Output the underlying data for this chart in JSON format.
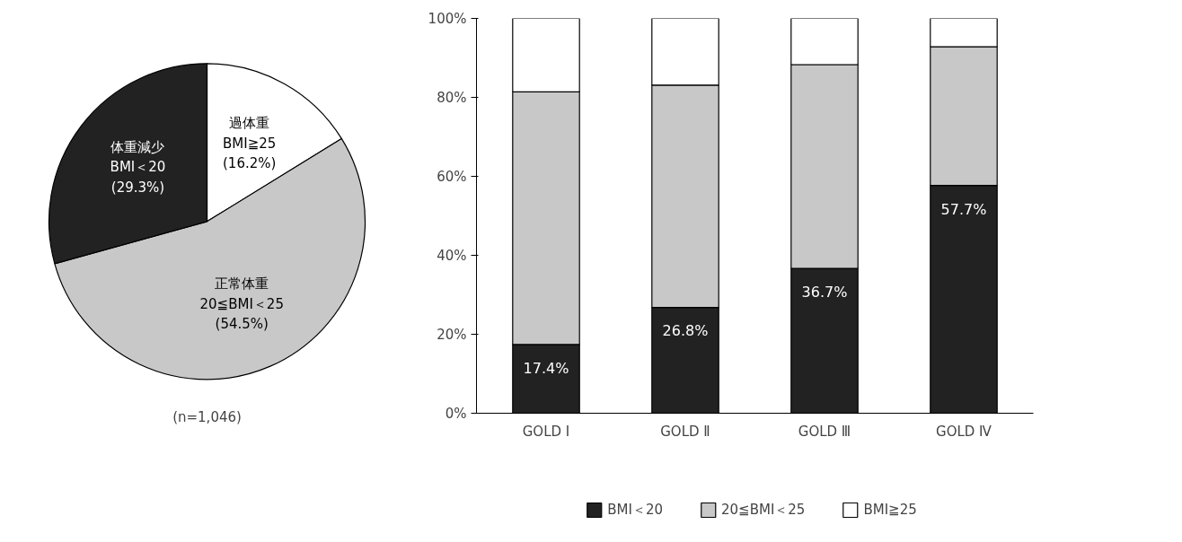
{
  "chart_data": [
    {
      "type": "pie",
      "categories": [
        "過体重\nBMI≧25",
        "正常体重\n20≦BMI＜25",
        "体重減少\nBMI＜20"
      ],
      "values": [
        16.2,
        54.5,
        29.3
      ],
      "value_labels": [
        "(16.2%)",
        "(54.5%)",
        "(29.3%)"
      ],
      "colors": [
        "#ffffff",
        "#c8c8c8",
        "#222222"
      ],
      "annotations": [
        "(n=1,046)"
      ]
    },
    {
      "type": "bar",
      "stacked": true,
      "categories": [
        "GOLD Ⅰ",
        "GOLD Ⅱ",
        "GOLD Ⅲ",
        "GOLD Ⅳ"
      ],
      "ylim": [
        0,
        100
      ],
      "yticks": [
        {
          "value": 0,
          "label": "0%"
        },
        {
          "value": 20,
          "label": "20%"
        },
        {
          "value": 40,
          "label": "40%"
        },
        {
          "value": 60,
          "label": "60%"
        },
        {
          "value": 80,
          "label": "80%"
        },
        {
          "value": 100,
          "label": "100%"
        }
      ],
      "grid": false,
      "legend": "bottom",
      "series": [
        {
          "name": "BMI＜20",
          "color": "#222222",
          "values": [
            17.4,
            26.8,
            36.7,
            57.7
          ],
          "value_labels": [
            "17.4%",
            "26.8%",
            "36.7%",
            "57.7%"
          ]
        },
        {
          "name": "20≦BMI＜25",
          "color": "#c8c8c8",
          "values": [
            64.0,
            56.3,
            51.6,
            35.1
          ]
        },
        {
          "name": "BMI≧25",
          "color": "#ffffff",
          "values": [
            18.6,
            16.9,
            11.7,
            7.2
          ]
        }
      ]
    }
  ]
}
